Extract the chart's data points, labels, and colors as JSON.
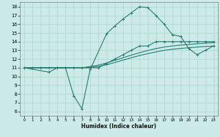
{
  "xlabel": "Humidex (Indice chaleur)",
  "xlim": [
    -0.5,
    23.5
  ],
  "ylim": [
    5.5,
    18.5
  ],
  "xticks": [
    0,
    1,
    2,
    3,
    4,
    5,
    6,
    7,
    8,
    9,
    10,
    11,
    12,
    13,
    14,
    15,
    16,
    17,
    18,
    19,
    20,
    21,
    22,
    23
  ],
  "yticks": [
    6,
    7,
    8,
    9,
    10,
    11,
    12,
    13,
    14,
    15,
    16,
    17,
    18
  ],
  "background_color": "#cceae7",
  "grid_color": "#aad4d0",
  "line_color": "#1a7a6e",
  "curve_x": [
    0,
    3,
    4,
    5,
    6,
    7,
    8,
    10,
    11,
    12,
    13,
    14,
    15,
    16,
    17,
    18,
    19,
    20,
    21,
    22,
    23
  ],
  "curve_y": [
    11,
    10.5,
    11,
    11,
    7.8,
    6.3,
    10.8,
    14.9,
    15.8,
    16.6,
    17.3,
    18.0,
    17.9,
    17.0,
    16.0,
    14.8,
    14.6,
    13.2,
    12.5,
    13.0,
    13.5
  ],
  "diag_x": [
    0,
    1,
    2,
    3,
    4,
    5,
    6,
    7,
    8,
    9,
    10,
    11,
    12,
    13,
    14,
    15,
    16,
    17,
    18,
    19,
    20,
    21,
    22,
    23
  ],
  "diag_y": [
    11,
    11,
    11,
    11,
    11,
    11,
    11,
    11,
    11,
    11,
    11.5,
    12,
    12.5,
    13,
    13.5,
    13.5,
    14,
    14,
    14,
    14,
    14,
    14,
    14,
    14
  ],
  "line3_x": [
    0,
    1,
    2,
    3,
    4,
    5,
    6,
    7,
    8,
    9,
    10,
    11,
    12,
    13,
    14,
    15,
    16,
    17,
    18,
    19,
    20,
    21,
    22,
    23
  ],
  "line3_y": [
    11,
    11,
    11,
    11,
    11,
    11,
    11,
    11,
    11.15,
    11.3,
    11.55,
    11.85,
    12.15,
    12.45,
    12.72,
    12.98,
    13.2,
    13.38,
    13.5,
    13.6,
    13.68,
    13.75,
    13.82,
    13.88
  ],
  "line4_x": [
    0,
    1,
    2,
    3,
    4,
    5,
    6,
    7,
    8,
    9,
    10,
    11,
    12,
    13,
    14,
    15,
    16,
    17,
    18,
    19,
    20,
    21,
    22,
    23
  ],
  "line4_y": [
    11,
    11,
    11,
    11,
    11,
    11,
    11,
    11,
    11.05,
    11.15,
    11.35,
    11.6,
    11.88,
    12.15,
    12.4,
    12.62,
    12.82,
    13.0,
    13.12,
    13.22,
    13.3,
    13.38,
    13.44,
    13.5
  ]
}
